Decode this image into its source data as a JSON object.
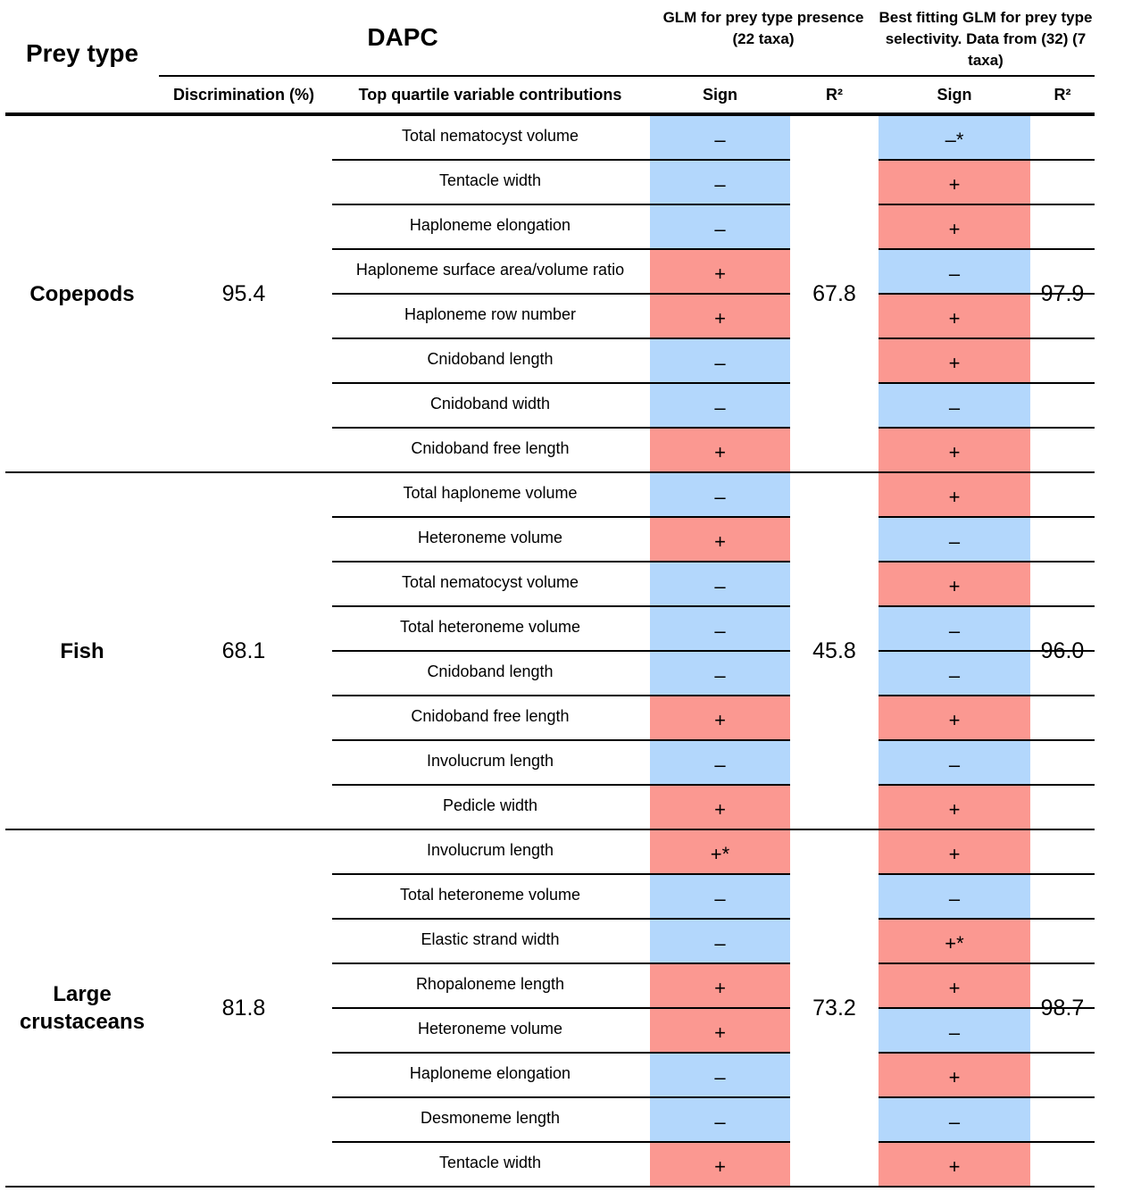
{
  "header": {
    "prey_type": "Prey type",
    "dapc": "DAPC",
    "glm_presence": "GLM for prey type presence (22 taxa)",
    "glm_selectivity": "Best fitting GLM for prey type selectivity. Data from (32) (7 taxa)",
    "col_discrimination": "Discrimination (%)",
    "col_top_quartile": "Top quartile variable contributions",
    "col_sign1": "Sign",
    "col_r2_1": "R²",
    "col_sign2": "Sign",
    "col_r2_2": "R²"
  },
  "colors": {
    "positive": "#fb9891",
    "negative": "#b3d7fc"
  },
  "groups": [
    {
      "prey": "Copepods",
      "discrimination": "95.4",
      "r2_presence": "67.8",
      "r2_selectivity": "97.9",
      "rows": [
        {
          "variable": "Total nematocyst volume",
          "sign1": "–",
          "sign2": "–*"
        },
        {
          "variable": "Tentacle width",
          "sign1": "–",
          "sign2": "+"
        },
        {
          "variable": "Haploneme elongation",
          "sign1": "–",
          "sign2": "+"
        },
        {
          "variable": "Haploneme surface area/volume ratio",
          "sign1": "+",
          "sign2": "–"
        },
        {
          "variable": "Haploneme row number",
          "sign1": "+",
          "sign2": "+"
        },
        {
          "variable": "Cnidoband length",
          "sign1": "–",
          "sign2": "+"
        },
        {
          "variable": "Cnidoband width",
          "sign1": "–",
          "sign2": "–"
        },
        {
          "variable": "Cnidoband free length",
          "sign1": "+",
          "sign2": "+"
        }
      ]
    },
    {
      "prey": "Fish",
      "discrimination": "68.1",
      "r2_presence": "45.8",
      "r2_selectivity": "96.0",
      "rows": [
        {
          "variable": "Total haploneme volume",
          "sign1": "–",
          "sign2": "+"
        },
        {
          "variable": "Heteroneme volume",
          "sign1": "+",
          "sign2": "–"
        },
        {
          "variable": "Total nematocyst volume",
          "sign1": "–",
          "sign2": "+"
        },
        {
          "variable": "Total heteroneme volume",
          "sign1": "–",
          "sign2": "–"
        },
        {
          "variable": "Cnidoband length",
          "sign1": "–",
          "sign2": "–"
        },
        {
          "variable": "Cnidoband free length",
          "sign1": "+",
          "sign2": "+"
        },
        {
          "variable": "Involucrum length",
          "sign1": "–",
          "sign2": "–"
        },
        {
          "variable": "Pedicle width",
          "sign1": "+",
          "sign2": "+"
        }
      ]
    },
    {
      "prey": "Large crustaceans",
      "discrimination": "81.8",
      "r2_presence": "73.2",
      "r2_selectivity": "98.7",
      "rows": [
        {
          "variable": "Involucrum length",
          "sign1": "+*",
          "sign2": "+"
        },
        {
          "variable": "Total heteroneme volume",
          "sign1": "–",
          "sign2": "–"
        },
        {
          "variable": "Elastic strand width",
          "sign1": "–",
          "sign2": "+*"
        },
        {
          "variable": "Rhopaloneme length",
          "sign1": "+",
          "sign2": "+"
        },
        {
          "variable": "Heteroneme volume",
          "sign1": "+",
          "sign2": "–"
        },
        {
          "variable": "Haploneme elongation",
          "sign1": "–",
          "sign2": "+"
        },
        {
          "variable": "Desmoneme length",
          "sign1": "–",
          "sign2": "–"
        },
        {
          "variable": "Tentacle width",
          "sign1": "+",
          "sign2": "+"
        }
      ]
    }
  ]
}
